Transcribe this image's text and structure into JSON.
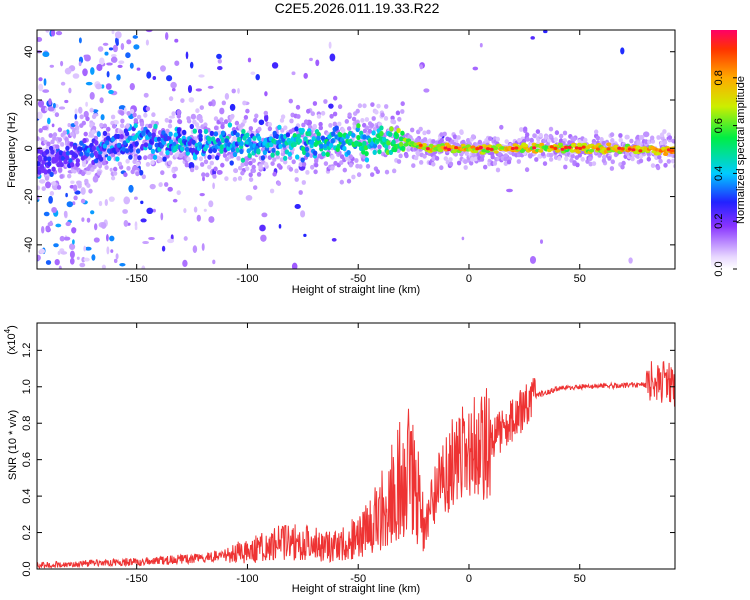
{
  "title": "C2E5.2026.011.19.33.R22",
  "chart_data": [
    {
      "type": "heatmap",
      "xlabel": "Height of straight line (km)",
      "ylabel": "Frequency (Hz)",
      "xlim": [
        -195,
        93
      ],
      "ylim": [
        -50,
        49
      ],
      "xticks": [
        -150,
        -100,
        -50,
        0,
        50
      ],
      "yticks": [
        -40,
        -20,
        0,
        20,
        40
      ],
      "colorbar": {
        "label": "Normalized spectral amplitude",
        "range": [
          0,
          1
        ],
        "ticks": [
          "0.0",
          "0.2",
          "0.4",
          "0.6",
          "0.8"
        ]
      },
      "ridge": {
        "description_points_x": [
          -195,
          -150,
          -100,
          -60,
          -40,
          -30,
          -20,
          0,
          50,
          93
        ],
        "center_freq_hz": [
          -6,
          3,
          1,
          3,
          4,
          3,
          0,
          0,
          0,
          -1
        ],
        "peak_amplitude": [
          0.3,
          0.45,
          0.5,
          0.55,
          0.6,
          0.75,
          0.85,
          0.85,
          0.8,
          0.9
        ]
      }
    },
    {
      "type": "line",
      "xlabel": "Height of straight line (km)",
      "ylabel": "SNR (10 * v/v)",
      "yscale_label": "(x10",
      "yscale_exp": "4",
      "yscale_close": ")",
      "xlim": [
        -195,
        93
      ],
      "ylim": [
        0,
        1.35
      ],
      "xticks": [
        -150,
        -100,
        -50,
        0,
        50
      ],
      "yticks": [
        0.0,
        0.2,
        0.4,
        0.6,
        0.8,
        1.0,
        1.2
      ],
      "series": [
        {
          "name": "SNR",
          "color": "#ee3333",
          "envelope_x": [
            -195,
            -150,
            -120,
            -100,
            -80,
            -60,
            -50,
            -40,
            -35,
            -25,
            -20,
            -10,
            0,
            10,
            20,
            30,
            40,
            50,
            80,
            85,
            93
          ],
          "envelope_y": [
            0.02,
            0.04,
            0.06,
            0.1,
            0.16,
            0.12,
            0.18,
            0.3,
            0.45,
            0.55,
            0.25,
            0.55,
            0.65,
            0.7,
            0.82,
            0.95,
            0.99,
            1.0,
            1.01,
            1.04,
            1.0
          ]
        }
      ]
    }
  ]
}
